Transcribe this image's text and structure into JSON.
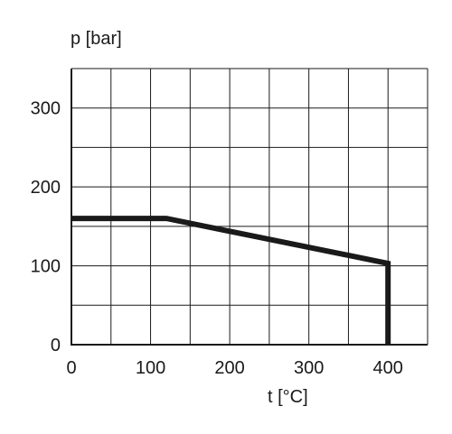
{
  "chart_data": {
    "type": "line",
    "title": "",
    "xlabel": "t [°C]",
    "ylabel": "p [bar]",
    "xlim": [
      0,
      450
    ],
    "ylim": [
      0,
      350
    ],
    "x_ticks": [
      0,
      100,
      200,
      300,
      400
    ],
    "y_ticks": [
      0,
      100,
      200,
      300
    ],
    "x_grid_step": 50,
    "y_grid_step": 50,
    "grid": true,
    "legend": "none",
    "series": [
      {
        "points": [
          {
            "x": 0,
            "y": 160
          },
          {
            "x": 120,
            "y": 160
          },
          {
            "x": 400,
            "y": 103
          },
          {
            "x": 400,
            "y": 0
          }
        ],
        "color": "#1a1a1a"
      }
    ]
  }
}
